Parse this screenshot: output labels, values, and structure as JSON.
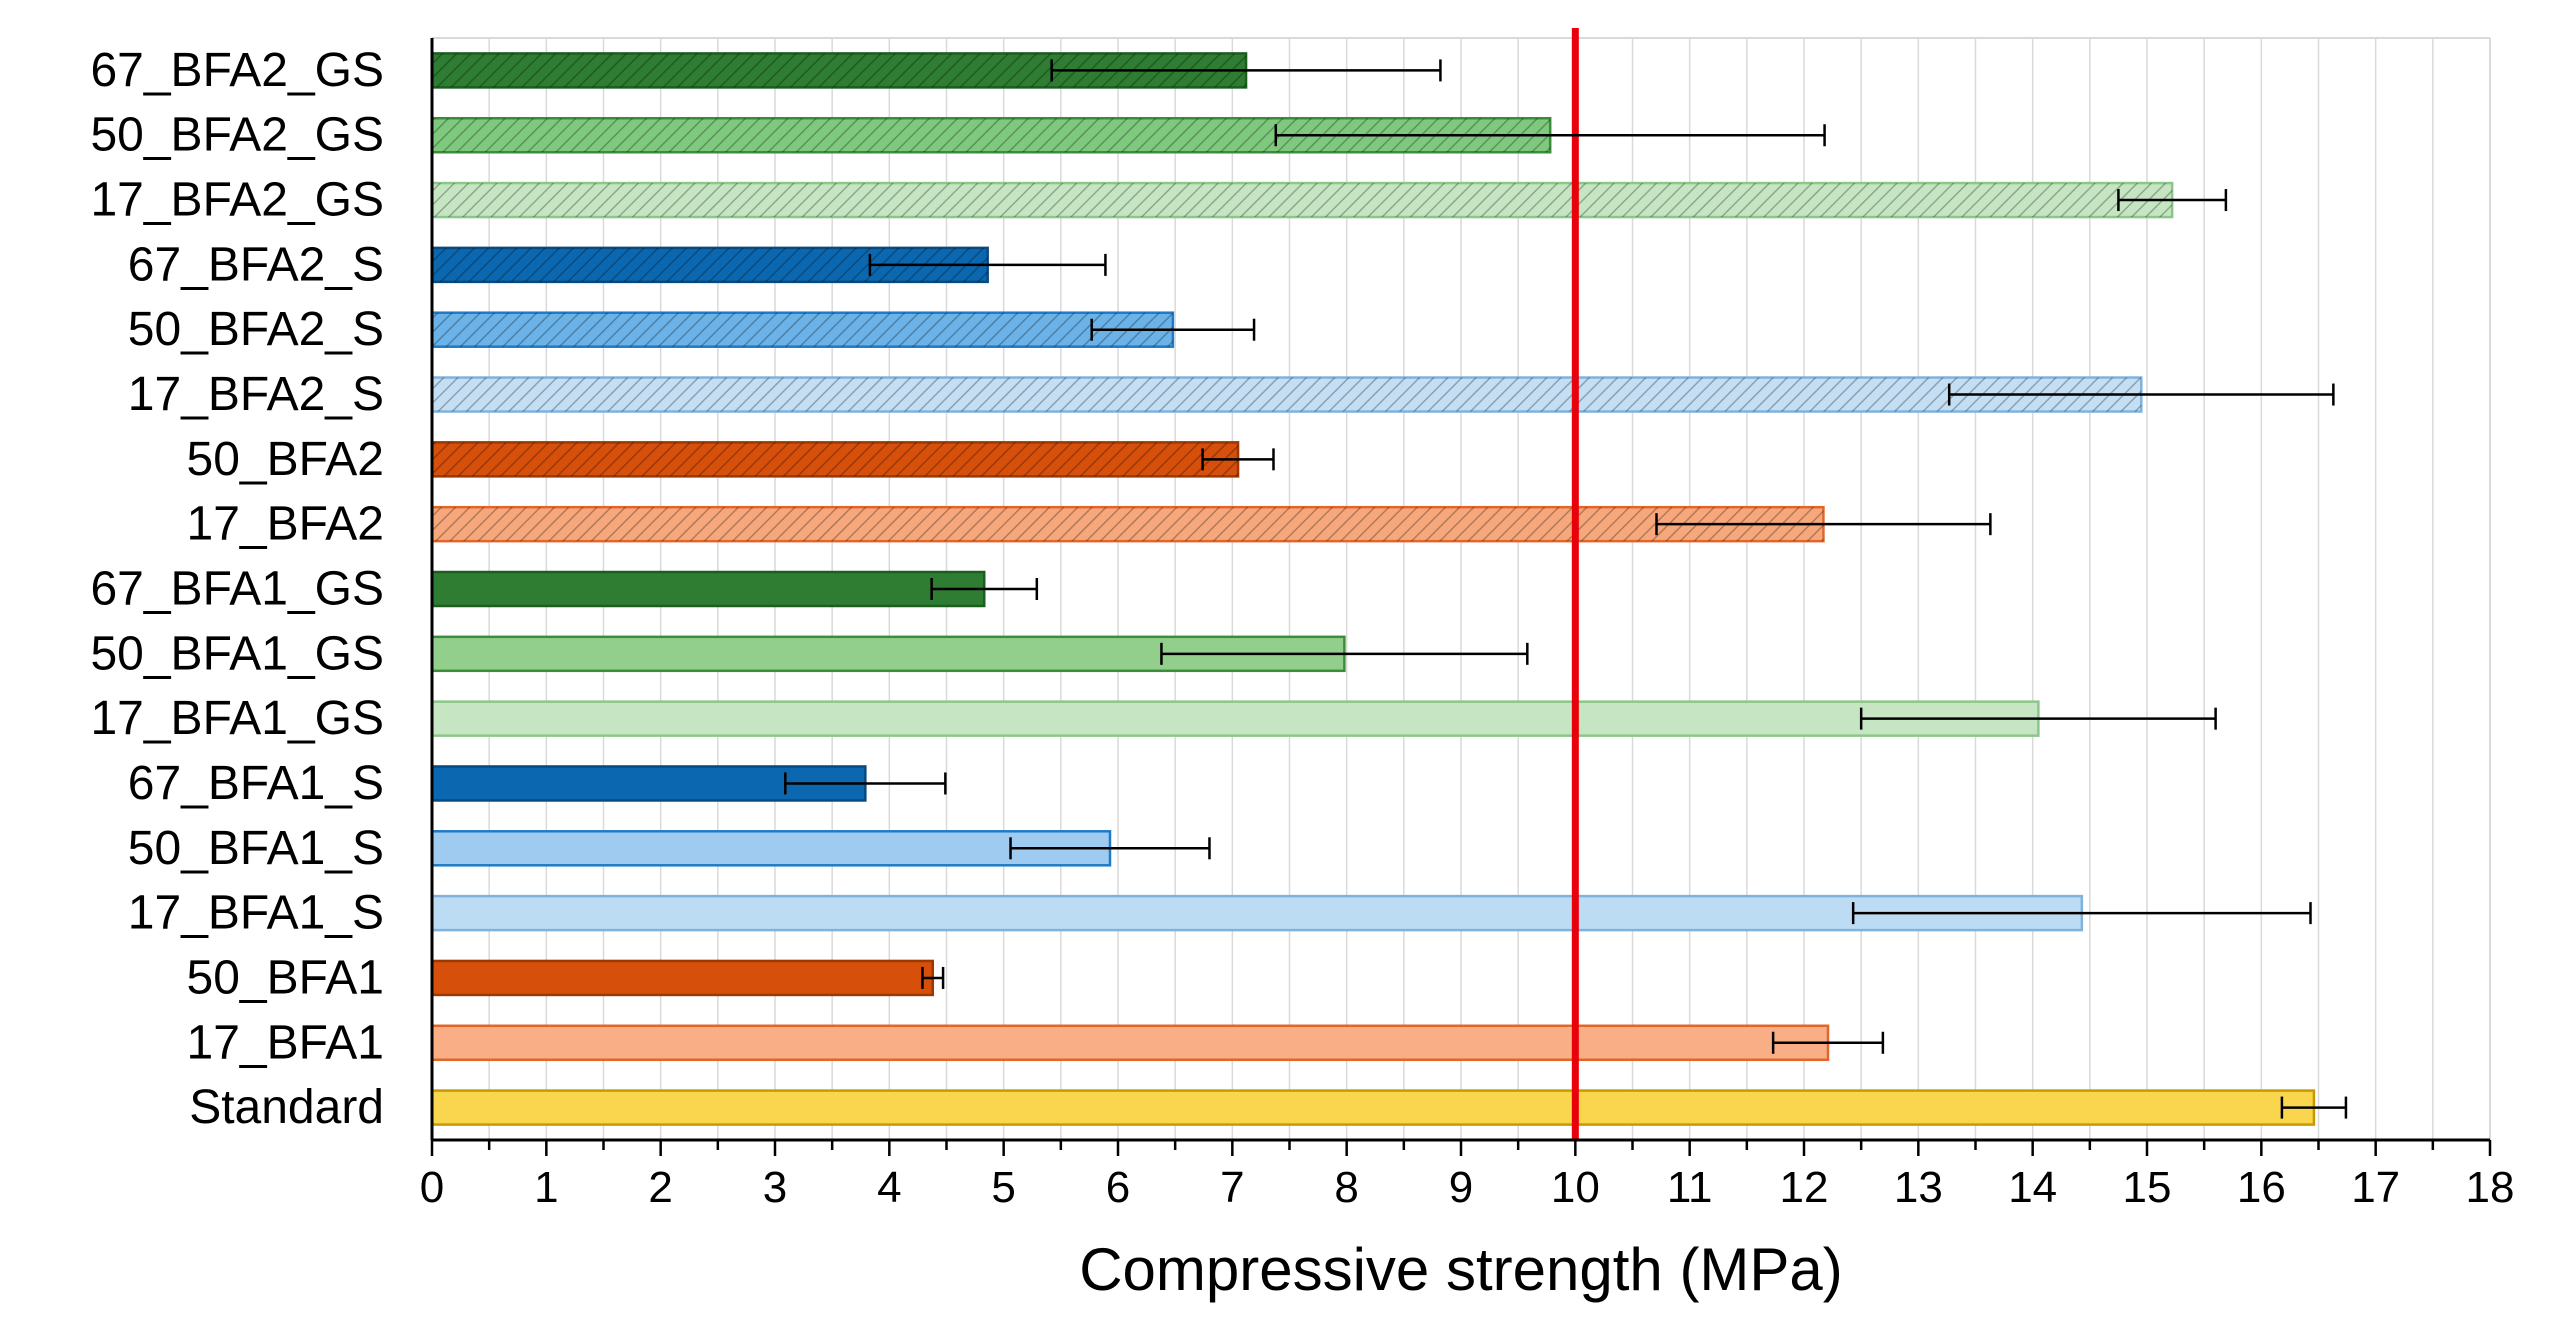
{
  "chart_data": {
    "type": "bar",
    "orientation": "horizontal",
    "title": "",
    "xlabel": "Compressive strength (MPa)",
    "ylabel": "",
    "xlim": [
      0,
      18
    ],
    "x_ticks": [
      "0",
      "1",
      "2",
      "3",
      "4",
      "5",
      "6",
      "7",
      "8",
      "9",
      "10",
      "11",
      "12",
      "13",
      "14",
      "15",
      "16",
      "17",
      "18"
    ],
    "grid": "vertical",
    "reference_line": {
      "value": 10,
      "color": "#e8000b"
    },
    "categories": [
      "67_BFA2_GS",
      "50_BFA2_GS",
      "17_BFA2_GS",
      "67_BFA2_S",
      "50_BFA2_S",
      "17_BFA2_S",
      "50_BFA2",
      "17_BFA2",
      "67_BFA1_GS",
      "50_BFA1_GS",
      "17_BFA1_GS",
      "67_BFA1_S",
      "50_BFA1_S",
      "17_BFA1_S",
      "50_BFA1",
      "17_BFA1",
      "Standard"
    ],
    "values": [
      7.12,
      9.78,
      15.22,
      4.86,
      6.48,
      14.95,
      7.05,
      12.17,
      4.83,
      7.98,
      14.05,
      3.79,
      5.93,
      14.43,
      4.38,
      12.21,
      16.46
    ],
    "errors": [
      1.7,
      2.4,
      0.47,
      1.03,
      0.71,
      1.68,
      0.31,
      1.46,
      0.46,
      1.6,
      1.55,
      0.7,
      0.87,
      2.0,
      0.09,
      0.48,
      0.28
    ],
    "fills": [
      "#2e7d32",
      "#7fc97f",
      "#c6e6c3",
      "#0b68b0",
      "#6ab2e7",
      "#c4def4",
      "#d64f0b",
      "#f7a77c",
      "#2e7d32",
      "#93cf8c",
      "#c6e6c3",
      "#0b68b0",
      "#9fcbf0",
      "#bcdcf4",
      "#d64f0b",
      "#f9ae86",
      "#f9d64e"
    ],
    "strokes": [
      "#1b5e20",
      "#3a8e3a",
      "#8cc78a",
      "#084a80",
      "#1f7bc6",
      "#7fb3dd",
      "#9c3800",
      "#e0662b",
      "#1b5e20",
      "#3a8e3a",
      "#8cc78a",
      "#084a80",
      "#1f7bc6",
      "#7fb3dd",
      "#9c3800",
      "#e0662b",
      "#c99a00"
    ],
    "hatch": [
      "dense",
      "dense",
      "dense",
      "dense",
      "dense",
      "dense",
      "dense",
      "dense",
      "none",
      "none",
      "none",
      "none",
      "none",
      "none",
      "none",
      "none",
      "none"
    ]
  }
}
